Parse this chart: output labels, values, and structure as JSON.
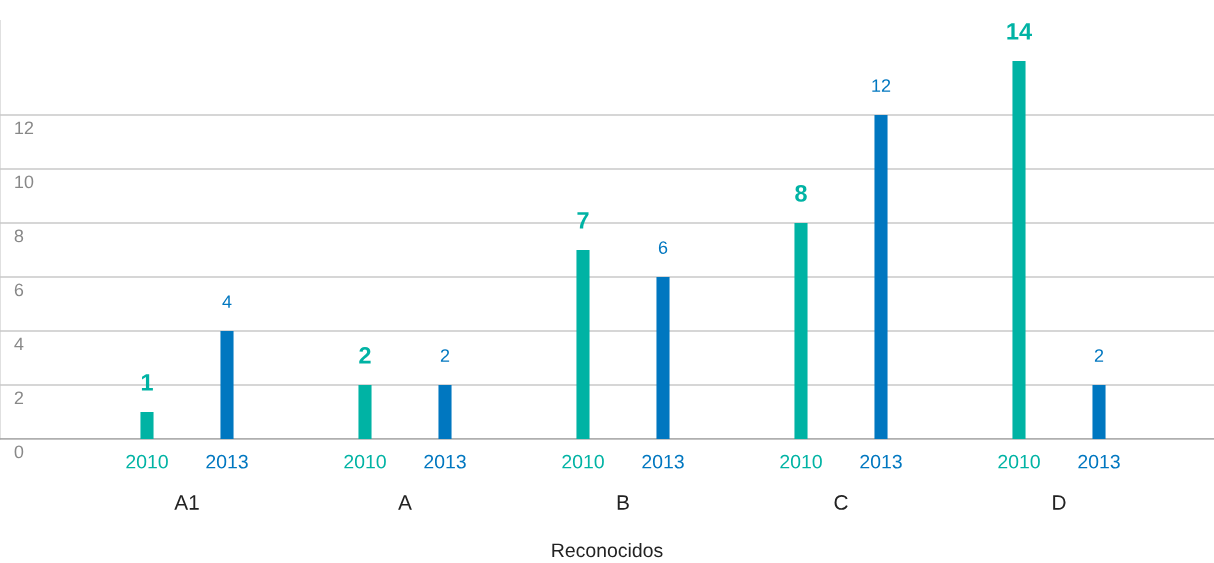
{
  "chart_data": {
    "type": "bar",
    "xlabel": "Reconocidos",
    "categories": [
      "A1",
      "A",
      "B",
      "C",
      "D"
    ],
    "series": [
      {
        "name": "2010",
        "color": "#00b3a4",
        "values": [
          1,
          2,
          7,
          8,
          14
        ]
      },
      {
        "name": "2013",
        "color": "#0077c0",
        "values": [
          4,
          2,
          6,
          12,
          2
        ]
      }
    ],
    "ylim": [
      0,
      15.5
    ],
    "yticks": [
      0,
      2,
      4,
      6,
      8,
      10,
      12
    ],
    "grid": "y",
    "data_labels": true,
    "legend": false
  }
}
